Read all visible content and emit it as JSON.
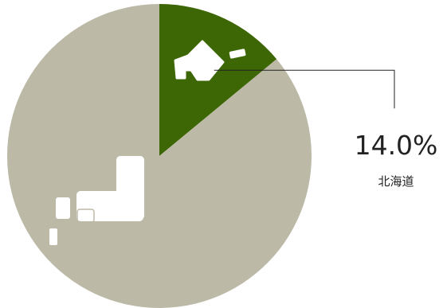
{
  "chart_data": {
    "type": "pie",
    "categories": [
      "北海道",
      null
    ],
    "values": [
      14.0,
      86.0
    ],
    "value_labels": [
      "14.0%",
      null
    ],
    "colors": [
      "#3d6605",
      "#bdb9a7"
    ]
  }
}
